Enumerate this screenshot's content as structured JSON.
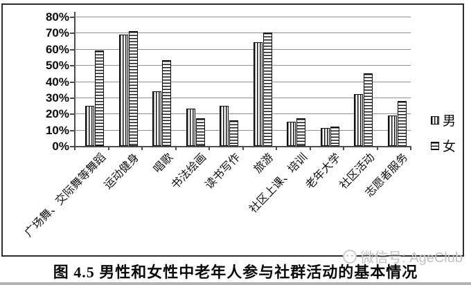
{
  "figure": {
    "caption": "图 4.5 男性和女性中老年人参与社群活动的基本情况",
    "watermark": {
      "icon": "wechat-smiley-logo",
      "text": "微信号: AgeClub"
    }
  },
  "chart_data": {
    "type": "bar",
    "title": "男性和女性中老年人参与社群活动的基本情况",
    "categories": [
      "广场舞、交际舞等舞蹈",
      "运动健身",
      "唱歌",
      "书法绘画",
      "读书写作",
      "旅游",
      "社区上课、培训",
      "老年大学",
      "社区活动",
      "志愿者服务"
    ],
    "series": [
      {
        "name": "男",
        "pattern": "vertical-stripes",
        "values": [
          25,
          69,
          34,
          23,
          25,
          64,
          15,
          11,
          32,
          19
        ]
      },
      {
        "name": "女",
        "pattern": "horizontal-stripes",
        "values": [
          59,
          71,
          53,
          17,
          16,
          70,
          17,
          12,
          45,
          28
        ]
      }
    ],
    "xlabel": "",
    "ylabel": "",
    "ylim": [
      0,
      80
    ],
    "ytick_step": 10,
    "ytick_labels": [
      "0%",
      "10%",
      "20%",
      "30%",
      "40%",
      "50%",
      "60%",
      "70%",
      "80%"
    ],
    "grid": true,
    "legend_position": "right-outside",
    "colors": {
      "bar_fill": "#ffffff",
      "bar_stroke": "#0a0a0a",
      "gridline": "#8f8f8f",
      "axis": "#4a4a4a",
      "watermark": "#c2c2c2"
    }
  }
}
